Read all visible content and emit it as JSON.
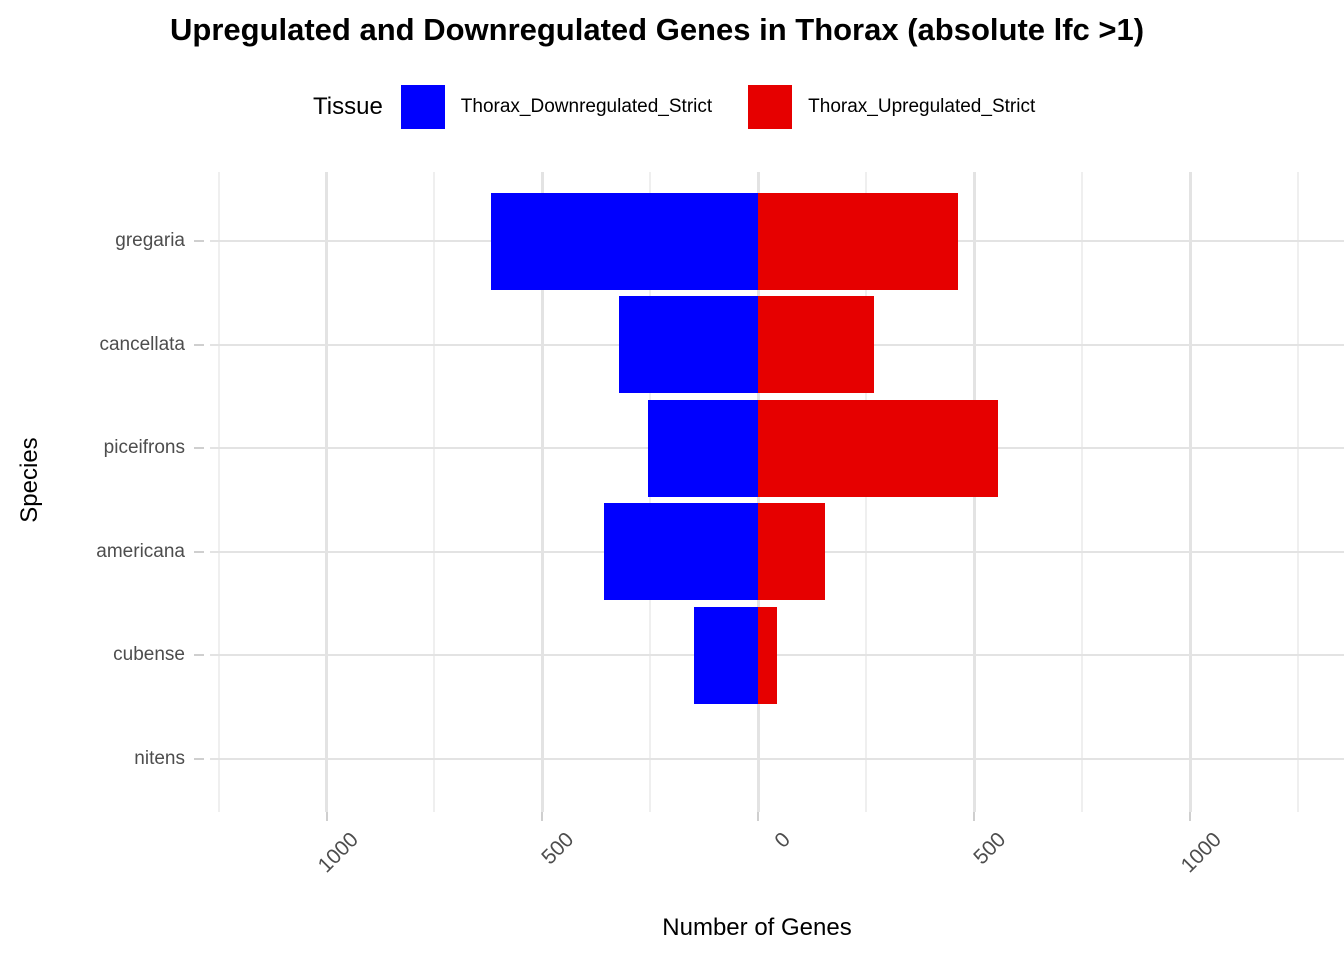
{
  "title": "Upregulated and Downregulated Genes in Thorax (absolute lfc >1)",
  "legend": {
    "title": "Tissue",
    "position": "top",
    "items": [
      {
        "label": "Thorax_Downregulated_Strict",
        "color": "#0000FF",
        "key": "downregulated"
      },
      {
        "label": "Thorax_Upregulated_Strict",
        "color": "#E60000",
        "key": "upregulated"
      }
    ]
  },
  "chart_data": {
    "type": "bar",
    "orientation": "horizontal-diverging",
    "title": "Upregulated and Downregulated Genes in Thorax (absolute lfc >1)",
    "xlabel": "Number of Genes",
    "ylabel": "Species",
    "categories": [
      "gregaria",
      "cancellata",
      "piceifrons",
      "americana",
      "cubense",
      "nitens"
    ],
    "series": [
      {
        "name": "Thorax_Downregulated_Strict",
        "direction": "negative",
        "color": "#0000FF",
        "values": [
          620,
          322,
          255,
          357,
          148,
          0
        ]
      },
      {
        "name": "Thorax_Upregulated_Strict",
        "direction": "positive",
        "color": "#E60000",
        "values": [
          463,
          268,
          556,
          155,
          44,
          0
        ]
      }
    ],
    "x_ticks": [
      -1000,
      -500,
      0,
      500,
      1000
    ],
    "x_tick_labels": [
      "1000",
      "500",
      "0",
      "500",
      "1000"
    ],
    "x_minor_ticks": [
      -1250,
      -750,
      -250,
      250,
      750,
      1250
    ],
    "xlim": [
      -1270,
      1360
    ],
    "grid": true,
    "legend_position": "top"
  }
}
